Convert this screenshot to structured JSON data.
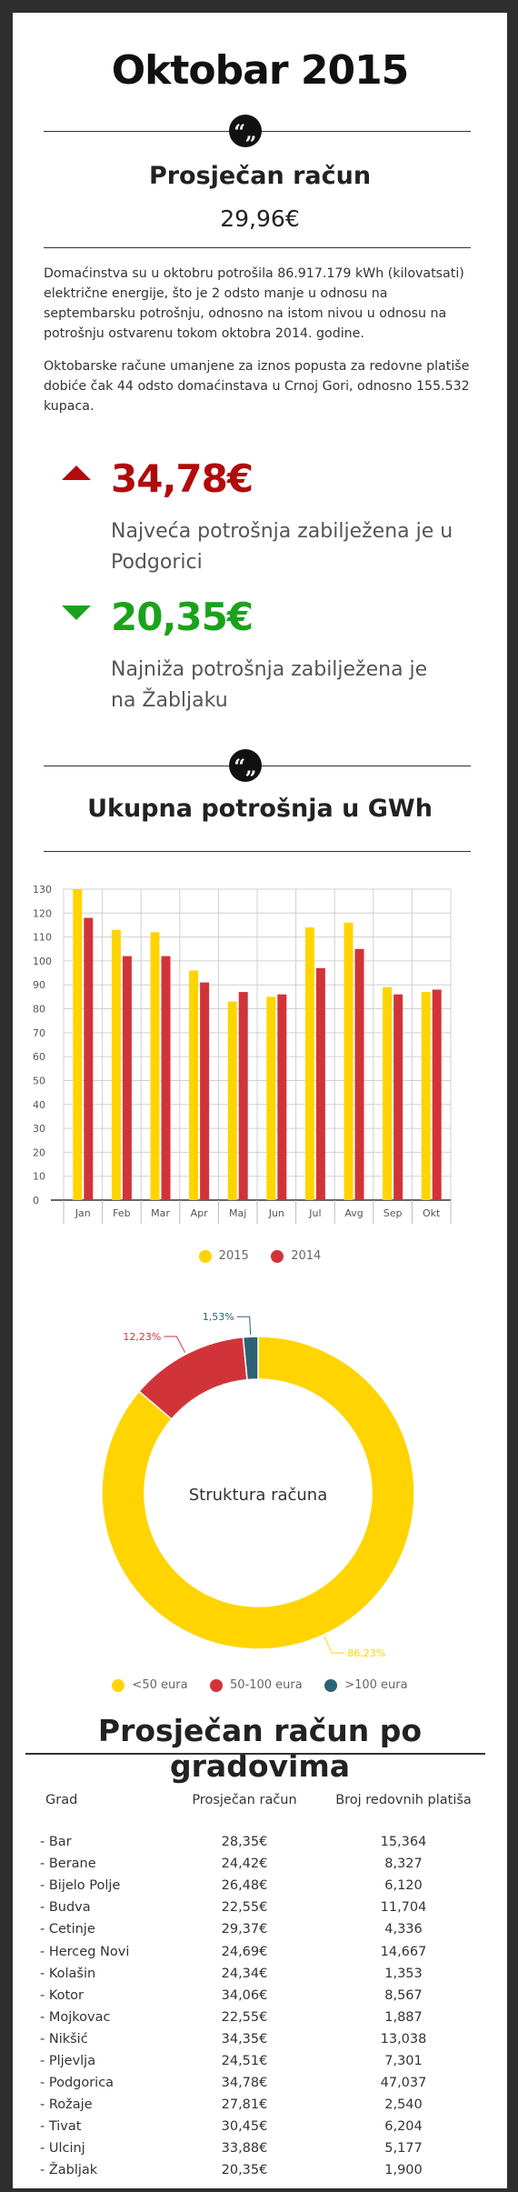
{
  "header": {
    "title": "Oktobar 2015",
    "quote_glyph": "“„"
  },
  "average": {
    "heading": "Prosječan račun",
    "value": "29,96€"
  },
  "paragraphs": [
    "Domaćinstva su u oktobru potrošila 86.917.179 kWh (kilovatsati) električne energije, što je 2 odsto manje u odnosu na septembarsku potrošnju, odnosno na istom nivou u odnosu na potrošnju ostvarenu tokom oktobra 2014. godine.",
    "Oktobarske račune umanjene za iznos popusta za redovne platiše dobiće čak 44 odsto domaćinstava u Crnoj Gori, odnosno 155.532 kupaca."
  ],
  "highest": {
    "value": "34,78€",
    "description": "Najveća potrošnja zabilježena je u Podgorici",
    "icon": "triangle-up-icon",
    "color": "#b00c0c"
  },
  "lowest": {
    "value": "20,35€",
    "description": "Najniža potrošnja zabilježena je na Žabljaku",
    "icon": "triangle-down-icon",
    "color": "#1aa31a"
  },
  "total_section": {
    "heading": "Ukupna potrošnja u GWh"
  },
  "chart_data": [
    {
      "type": "bar",
      "categories": [
        "Jan",
        "Feb",
        "Mar",
        "Apr",
        "Maj",
        "Jun",
        "Jul",
        "Avg",
        "Sep",
        "Okt"
      ],
      "series": [
        {
          "name": "2015",
          "color": "#ffd400",
          "values": [
            130,
            113,
            112,
            96,
            83,
            85,
            114,
            116,
            89,
            87
          ]
        },
        {
          "name": "2014",
          "color": "#d13438",
          "values": [
            118,
            102,
            102,
            91,
            87,
            86,
            97,
            105,
            86,
            88
          ]
        }
      ],
      "ylim": [
        0,
        130
      ],
      "yticks": [
        "0",
        "10",
        "20",
        "30",
        "40",
        "50",
        "60",
        "70",
        "80",
        "90",
        "100",
        "110",
        "120",
        "130"
      ],
      "grid": true,
      "legend": "bottom"
    },
    {
      "type": "pie",
      "title": "Struktura računa",
      "slices": [
        {
          "name": "<50 eura",
          "value": 86.23,
          "label": "86,23%",
          "color": "#ffd400"
        },
        {
          "name": "50-100 eura",
          "value": 12.23,
          "label": "12,23%",
          "color": "#d13438"
        },
        {
          "name": ">100 eura",
          "value": 1.53,
          "label": "1,53%",
          "color": "#2e6275"
        }
      ],
      "legend": "bottom"
    }
  ],
  "cities": {
    "heading": "Prosječan račun po gradovima",
    "columns": [
      "Grad",
      "Prosječan račun",
      "Broj redovnih platiša"
    ],
    "rows": [
      [
        "- Bar",
        "28,35€",
        "15,364"
      ],
      [
        "- Berane",
        "24,42€",
        "8,327"
      ],
      [
        "- Bijelo Polje",
        "26,48€",
        "6,120"
      ],
      [
        "- Budva",
        "22,55€",
        "11,704"
      ],
      [
        "- Cetinje",
        "29,37€",
        "4,336"
      ],
      [
        "- Herceg Novi",
        "24,69€",
        "14,667"
      ],
      [
        "- Kolašin",
        "24,34€",
        "1,353"
      ],
      [
        "- Kotor",
        "34,06€",
        "8,567"
      ],
      [
        "- Mojkovac",
        "22,55€",
        "1,887"
      ],
      [
        "- Nikšić",
        "34,35€",
        "13,038"
      ],
      [
        "- Pljevlja",
        "24,51€",
        "7,301"
      ],
      [
        "- Podgorica",
        "34,78€",
        "47,037"
      ],
      [
        "- Rožaje",
        "27,81€",
        "2,540"
      ],
      [
        "- Tivat",
        "30,45€",
        "6,204"
      ],
      [
        "- Ulcinj",
        "33,88€",
        "5,177"
      ],
      [
        "- Žabljak",
        "20,35€",
        "1,900"
      ]
    ]
  }
}
